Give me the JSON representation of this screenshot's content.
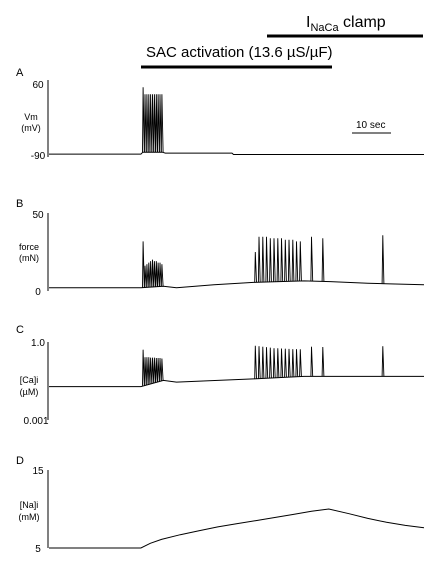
{
  "header": {
    "inaca_clamp": {
      "base": "I",
      "sub": "NaCa",
      "rest": " clamp"
    },
    "sac_activation": "SAC activation (13.6 µS/µF)"
  },
  "scale_bar": {
    "label": "10 sec",
    "seconds": 10
  },
  "chart_data": [
    {
      "type": "line",
      "panel": "A",
      "ylabel": [
        "Vm",
        "(mV)"
      ],
      "ytick_labels": [
        "60",
        "-90"
      ],
      "ylim": [
        -90,
        60
      ],
      "xlim_s": [
        0,
        100
      ],
      "series": [
        {
          "segments": [
            {
              "x": [
                0,
                24.5,
                25.0,
                30.2,
                31.0,
                48.8,
                49.2,
                100
              ],
              "y": [
                -88,
                -88,
                -84,
                -84,
                -86,
                -86,
                -89,
                -89
              ]
            }
          ],
          "spikes": {
            "x": [
              25.1,
              25.6,
              26.1,
              26.6,
              27.1,
              27.6,
              28.1,
              28.6,
              29.1,
              29.6,
              30.1
            ],
            "y": [
              55,
              40,
              40,
              40,
              40,
              40,
              40,
              40,
              40,
              40,
              40
            ],
            "base": -84
          }
        }
      ]
    },
    {
      "type": "line",
      "panel": "B",
      "ylabel": [
        "force",
        "(mN)"
      ],
      "ytick_labels": [
        "50",
        "0"
      ],
      "ylim": [
        0,
        50
      ],
      "xlim_s": [
        0,
        100
      ],
      "series": [
        {
          "segments": [
            {
              "x": [
                0,
                24.5,
                30.5,
                34,
                44,
                54.5,
                68,
                75,
                85,
                91,
                100
              ],
              "y": [
                1.5,
                1.5,
                2.5,
                1.5,
                3.5,
                5,
                6,
                5.5,
                4.5,
                4,
                3.5
              ]
            }
          ],
          "spikes": {
            "x": [
              25.1,
              25.6,
              26.1,
              26.6,
              27.1,
              27.6,
              28.1,
              28.6,
              29.1,
              29.6,
              30.1,
              55.0,
              56.0,
              57.0,
              58.0,
              59.0,
              60.0,
              61.0,
              62.0,
              63.0,
              64.0,
              65.0,
              66.0,
              67.0,
              70.0,
              73.0,
              89.0
            ],
            "y": [
              32,
              16,
              17,
              18,
              19,
              20,
              19,
              19,
              18,
              18,
              17,
              25,
              35,
              35,
              35,
              34,
              34,
              34,
              34,
              33,
              33,
              33,
              32,
              32,
              35,
              34,
              36
            ]
          }
        }
      ]
    },
    {
      "type": "line",
      "panel": "C",
      "ylabel": [
        "[Ca]i",
        "(µM)"
      ],
      "ytick_labels": [
        "1.0",
        "0.001"
      ],
      "ylim": [
        0.001,
        1.0
      ],
      "xlim_s": [
        0,
        100
      ],
      "series": [
        {
          "segments": [
            {
              "x": [
                0,
                24.5,
                30.5,
                34,
                54.5,
                68,
                75,
                100
              ],
              "y": [
                0.02,
                0.02,
                0.035,
                0.03,
                0.04,
                0.05,
                0.05,
                0.05
              ]
            }
          ],
          "spikes": {
            "x": [
              25.1,
              25.6,
              26.1,
              26.6,
              27.1,
              27.6,
              28.1,
              28.6,
              29.1,
              29.6,
              30.1,
              55.0,
              56.0,
              57.0,
              58.0,
              59.0,
              60.0,
              61.0,
              62.0,
              63.0,
              64.0,
              65.0,
              66.0,
              67.0,
              70.0,
              73.0,
              89.0
            ],
            "y": [
              0.55,
              0.28,
              0.28,
              0.28,
              0.27,
              0.27,
              0.27,
              0.26,
              0.26,
              0.26,
              0.25,
              0.78,
              0.75,
              0.72,
              0.69,
              0.66,
              0.63,
              0.62,
              0.61,
              0.6,
              0.59,
              0.58,
              0.58,
              0.57,
              0.72,
              0.7,
              0.75
            ]
          }
        }
      ]
    },
    {
      "type": "line",
      "panel": "D",
      "ylabel": [
        "[Na]i",
        "(mM)"
      ],
      "ytick_labels": [
        "15",
        "5"
      ],
      "ylim": [
        5,
        15
      ],
      "xlim_s": [
        0,
        100
      ],
      "series": [
        {
          "segments": [
            {
              "x": [
                0,
                24.5,
                27,
                30,
                35,
                40,
                45,
                50,
                55,
                60,
                65,
                70,
                74.6,
                80,
                85,
                90,
                95,
                100
              ],
              "y": [
                5.0,
                5.0,
                5.6,
                6.1,
                6.7,
                7.2,
                7.7,
                8.1,
                8.5,
                8.9,
                9.3,
                9.7,
                10.0,
                9.4,
                8.8,
                8.3,
                7.9,
                7.6
              ]
            }
          ]
        }
      ]
    }
  ]
}
